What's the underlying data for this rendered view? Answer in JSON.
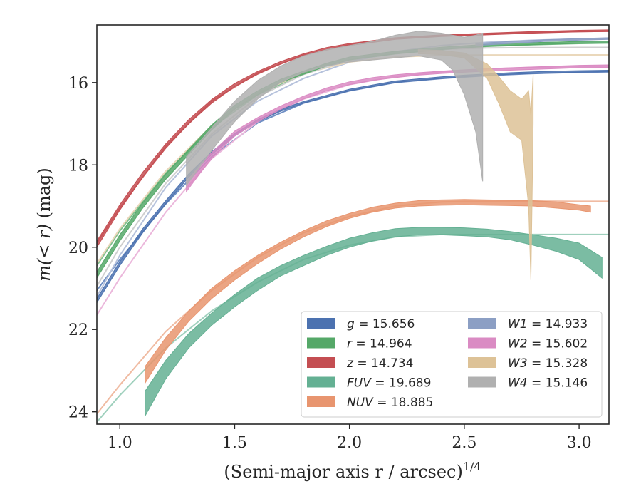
{
  "chart_data": {
    "type": "area",
    "title": "",
    "xlabel": "(Semi-major axis r / arcsec)",
    "xlabel_exponent": "1/4",
    "ylabel_prefix": "m(< r)",
    "ylabel_suffix": " (mag)",
    "xlim": [
      0.9,
      3.13
    ],
    "ylim": [
      24.3,
      14.6
    ],
    "y_inverted": true,
    "grid": false,
    "legend_position": "lower-right",
    "x_ticks": [
      {
        "value": 1.0,
        "label": "1.0"
      },
      {
        "value": 1.5,
        "label": "1.5"
      },
      {
        "value": 2.0,
        "label": "2.0"
      },
      {
        "value": 2.5,
        "label": "2.5"
      },
      {
        "value": 3.0,
        "label": "3.0"
      }
    ],
    "y_ticks": [
      {
        "value": 16,
        "label": "16"
      },
      {
        "value": 18,
        "label": "18"
      },
      {
        "value": 20,
        "label": "20"
      },
      {
        "value": 22,
        "label": "22"
      },
      {
        "value": 24,
        "label": "24"
      }
    ],
    "series": [
      {
        "name": "g = 15.656",
        "legend_var": "g",
        "legend_value": "15.656",
        "color": "#4c72b0",
        "model_color": "#6f8fc4",
        "x": [
          0.9,
          1.0,
          1.1,
          1.2,
          1.3,
          1.4,
          1.5,
          1.6,
          1.7,
          1.8,
          1.9,
          2.0,
          2.1,
          2.2,
          2.3,
          2.4,
          2.5,
          2.6,
          2.7,
          2.8,
          2.9,
          3.0,
          3.13
        ],
        "y_upper": [
          21.35,
          20.45,
          19.65,
          18.95,
          18.3,
          17.75,
          17.3,
          16.95,
          16.7,
          16.5,
          16.35,
          16.2,
          16.1,
          16.0,
          15.95,
          15.9,
          15.86,
          15.83,
          15.8,
          15.78,
          15.76,
          15.75,
          15.74
        ],
        "y_lower": [
          21.25,
          20.35,
          19.55,
          18.87,
          18.22,
          17.68,
          17.24,
          16.9,
          16.65,
          16.46,
          16.31,
          16.16,
          16.06,
          15.96,
          15.91,
          15.86,
          15.82,
          15.79,
          15.76,
          15.74,
          15.72,
          15.71,
          15.7
        ],
        "model_x": [
          0.9,
          1.0,
          1.2,
          1.4,
          1.6,
          1.8,
          2.0,
          2.2,
          2.4,
          2.6,
          2.8,
          3.0,
          3.13
        ],
        "model_y": [
          21.05,
          20.3,
          18.95,
          17.8,
          16.98,
          16.5,
          16.2,
          16.0,
          15.9,
          15.83,
          15.78,
          15.75,
          15.74
        ]
      },
      {
        "name": "r = 14.964",
        "legend_var": "r",
        "legend_value": "14.964",
        "color": "#55a868",
        "model_color": "#7fc08e",
        "x": [
          0.9,
          1.0,
          1.1,
          1.2,
          1.3,
          1.4,
          1.5,
          1.6,
          1.7,
          1.8,
          1.9,
          2.0,
          2.2,
          2.4,
          2.6,
          2.8,
          3.0,
          3.13
        ],
        "y_upper": [
          20.75,
          19.85,
          19.05,
          18.35,
          17.75,
          17.15,
          16.65,
          16.3,
          16.0,
          15.8,
          15.6,
          15.45,
          15.3,
          15.2,
          15.12,
          15.08,
          15.05,
          15.04
        ],
        "y_lower": [
          20.6,
          19.7,
          18.92,
          18.22,
          17.62,
          17.03,
          16.55,
          16.2,
          15.92,
          15.72,
          15.53,
          15.38,
          15.24,
          15.14,
          15.07,
          15.03,
          15.0,
          14.99
        ],
        "model_x": [
          0.9,
          1.0,
          1.2,
          1.4,
          1.6,
          1.8,
          2.0,
          2.2,
          2.4,
          2.6,
          2.8,
          3.0,
          3.13
        ],
        "model_y": [
          20.45,
          19.6,
          18.2,
          17.1,
          16.3,
          15.8,
          15.45,
          15.3,
          15.2,
          15.12,
          15.08,
          15.05,
          15.04
        ]
      },
      {
        "name": "z = 14.734",
        "legend_var": "z",
        "legend_value": "14.734",
        "color": "#c44e52",
        "model_color": "#d77a7d",
        "x": [
          0.9,
          1.0,
          1.1,
          1.2,
          1.3,
          1.4,
          1.5,
          1.6,
          1.7,
          1.8,
          1.9,
          2.0,
          2.2,
          2.4,
          2.6,
          2.8,
          3.0,
          3.13
        ],
        "y_upper": [
          20.0,
          19.1,
          18.3,
          17.6,
          17.0,
          16.5,
          16.1,
          15.8,
          15.55,
          15.35,
          15.2,
          15.1,
          14.95,
          14.88,
          14.84,
          14.8,
          14.77,
          14.76
        ],
        "y_lower": [
          19.85,
          18.97,
          18.18,
          17.49,
          16.9,
          16.41,
          16.02,
          15.73,
          15.49,
          15.3,
          15.15,
          15.05,
          14.91,
          14.84,
          14.8,
          14.76,
          14.73,
          14.72
        ],
        "model_x": [
          0.9,
          1.0,
          1.2,
          1.4,
          1.6,
          1.8,
          2.0,
          2.2,
          2.4,
          2.6,
          2.8,
          3.0,
          3.13
        ],
        "model_y": [
          19.9,
          19.05,
          17.55,
          16.45,
          15.77,
          15.33,
          15.08,
          14.93,
          14.86,
          14.82,
          14.78,
          14.76,
          14.75
        ]
      },
      {
        "name": "FUV = 19.689",
        "legend_var": "FUV",
        "legend_value": "19.689",
        "color": "#64b093",
        "model_color": "#9fd0bd",
        "x": [
          1.11,
          1.2,
          1.3,
          1.4,
          1.5,
          1.6,
          1.7,
          1.8,
          1.9,
          2.0,
          2.1,
          2.2,
          2.3,
          2.4,
          2.5,
          2.6,
          2.7,
          2.8,
          2.9,
          3.0,
          3.1
        ],
        "y_upper": [
          24.1,
          23.2,
          22.45,
          21.9,
          21.45,
          21.05,
          20.7,
          20.45,
          20.2,
          20.0,
          19.85,
          19.75,
          19.7,
          19.7,
          19.72,
          19.75,
          19.82,
          19.95,
          20.1,
          20.3,
          20.75
        ],
        "y_lower": [
          23.5,
          22.75,
          22.1,
          21.6,
          21.15,
          20.75,
          20.45,
          20.2,
          19.98,
          19.78,
          19.65,
          19.55,
          19.52,
          19.52,
          19.53,
          19.56,
          19.62,
          19.7,
          19.78,
          19.9,
          20.25
        ],
        "model_x": [
          0.9,
          1.0,
          1.2,
          1.4,
          1.6,
          1.8,
          2.0,
          2.2,
          2.4,
          2.6,
          2.8,
          3.0,
          3.13
        ],
        "model_y": [
          24.25,
          23.6,
          22.45,
          21.55,
          20.85,
          20.3,
          19.95,
          19.75,
          19.69,
          19.69,
          19.69,
          19.69,
          19.69
        ]
      },
      {
        "name": "NUV = 18.885",
        "legend_var": "NUV",
        "legend_value": "18.885",
        "color": "#e8956f",
        "model_color": "#f0bba2",
        "x": [
          1.11,
          1.2,
          1.3,
          1.4,
          1.5,
          1.6,
          1.7,
          1.8,
          1.9,
          2.0,
          2.1,
          2.2,
          2.3,
          2.4,
          2.5,
          2.6,
          2.7,
          2.8,
          2.9,
          3.0,
          3.05
        ],
        "y_upper": [
          23.3,
          22.5,
          21.8,
          21.25,
          20.8,
          20.4,
          20.05,
          19.75,
          19.5,
          19.3,
          19.15,
          19.05,
          19.0,
          18.98,
          18.97,
          18.98,
          18.99,
          19.0,
          19.05,
          19.1,
          19.15
        ],
        "y_lower": [
          22.9,
          22.2,
          21.55,
          21.0,
          20.57,
          20.2,
          19.88,
          19.6,
          19.36,
          19.18,
          19.03,
          18.93,
          18.87,
          18.85,
          18.84,
          18.85,
          18.86,
          18.87,
          18.9,
          18.97,
          19.0
        ],
        "model_x": [
          0.9,
          1.0,
          1.2,
          1.4,
          1.6,
          1.8,
          2.0,
          2.2,
          2.4,
          2.6,
          2.8,
          3.0,
          3.13
        ],
        "model_y": [
          24.05,
          23.35,
          22.05,
          21.05,
          20.25,
          19.65,
          19.25,
          19.0,
          18.9,
          18.88,
          18.88,
          18.885,
          18.885
        ]
      },
      {
        "name": "W1 = 14.933",
        "legend_var": "W1",
        "legend_value": "14.933",
        "color": "#8c9fc4",
        "model_color": "#b6c2dc",
        "x": [
          2.55,
          2.7,
          2.85,
          3.0,
          3.13
        ],
        "y_upper": [
          15.1,
          15.05,
          15.0,
          14.97,
          14.95
        ],
        "y_lower": [
          15.05,
          15.0,
          14.96,
          14.93,
          14.91
        ],
        "model_x": [
          0.9,
          1.0,
          1.2,
          1.4,
          1.6,
          1.8,
          2.0,
          2.2,
          2.4,
          2.6,
          2.8,
          3.0,
          3.13
        ],
        "model_y": [
          21.2,
          20.2,
          18.55,
          17.3,
          16.45,
          15.9,
          15.5,
          15.25,
          15.1,
          15.02,
          14.97,
          14.94,
          14.933
        ]
      },
      {
        "name": "W2 = 15.602",
        "legend_var": "W2",
        "legend_value": "15.602",
        "color": "#da8bc3",
        "model_color": "#ebb7db",
        "x": [
          1.29,
          1.35,
          1.4,
          1.5,
          1.6,
          1.7,
          1.8,
          1.9,
          2.0,
          2.1,
          2.2,
          2.3,
          2.4,
          2.5,
          2.6,
          2.7,
          2.8,
          2.9,
          3.0,
          3.13
        ],
        "y_upper": [
          18.65,
          18.2,
          17.85,
          17.3,
          16.95,
          16.65,
          16.4,
          16.2,
          16.05,
          15.95,
          15.88,
          15.82,
          15.78,
          15.75,
          15.72,
          15.7,
          15.68,
          15.66,
          15.64,
          15.63
        ],
        "y_lower": [
          18.4,
          18.0,
          17.7,
          17.18,
          16.85,
          16.57,
          16.33,
          16.13,
          15.98,
          15.88,
          15.81,
          15.76,
          15.72,
          15.69,
          15.66,
          15.64,
          15.62,
          15.6,
          15.58,
          15.57
        ],
        "model_x": [
          0.9,
          1.0,
          1.2,
          1.4,
          1.6,
          1.8,
          2.0,
          2.2,
          2.4,
          2.6,
          2.8,
          3.0,
          3.13
        ],
        "model_y": [
          21.65,
          20.75,
          19.15,
          17.85,
          16.95,
          16.4,
          16.05,
          15.85,
          15.74,
          15.67,
          15.63,
          15.61,
          15.602
        ]
      },
      {
        "name": "W3 = 15.328",
        "legend_var": "W3",
        "legend_value": "15.328",
        "color": "#ddc297",
        "model_color": "#ead8bb",
        "x": [
          2.3,
          2.4,
          2.5,
          2.6,
          2.65,
          2.7,
          2.75,
          2.78,
          2.79,
          2.8
        ],
        "y_upper": [
          15.3,
          15.32,
          15.4,
          15.9,
          16.5,
          17.2,
          17.4,
          19.0,
          20.8,
          17.0
        ],
        "y_lower": [
          15.2,
          15.22,
          15.28,
          15.55,
          15.85,
          16.2,
          16.4,
          16.2,
          16.8,
          15.8
        ],
        "model_x": [
          0.9,
          1.0,
          1.2,
          1.4,
          1.6,
          1.8,
          2.0,
          2.2,
          2.4,
          2.6,
          2.8,
          3.0,
          3.13
        ],
        "model_y": [
          20.4,
          19.55,
          18.15,
          17.05,
          16.25,
          15.78,
          15.5,
          15.38,
          15.34,
          15.33,
          15.33,
          15.328,
          15.328
        ]
      },
      {
        "name": "W4 = 15.146",
        "legend_var": "W4",
        "legend_value": "15.146",
        "color": "#b0b0b0",
        "model_color": "#cfcfcf",
        "x": [
          1.29,
          1.4,
          1.5,
          1.6,
          1.7,
          1.8,
          1.9,
          2.0,
          2.1,
          2.2,
          2.3,
          2.4,
          2.45,
          2.5,
          2.55,
          2.58
        ],
        "y_upper": [
          18.5,
          17.65,
          16.95,
          16.4,
          16.0,
          15.75,
          15.6,
          15.5,
          15.45,
          15.4,
          15.35,
          15.45,
          15.7,
          16.3,
          17.2,
          18.4
        ],
        "y_lower": [
          17.8,
          17.1,
          16.45,
          15.95,
          15.6,
          15.35,
          15.2,
          15.1,
          15.0,
          14.85,
          14.75,
          14.8,
          14.85,
          14.9,
          14.85,
          14.8
        ],
        "model_x": [
          0.9,
          1.0,
          1.2,
          1.4,
          1.6,
          1.8,
          2.0,
          2.2,
          2.4,
          2.6,
          2.8,
          3.0,
          3.13
        ],
        "model_y": [
          20.95,
          20.0,
          18.45,
          17.25,
          16.35,
          15.8,
          15.45,
          15.27,
          15.19,
          15.16,
          15.15,
          15.146,
          15.146
        ]
      }
    ],
    "legend_columns": [
      [
        "g = 15.656",
        "r = 14.964",
        "z = 14.734",
        "FUV = 19.689",
        "NUV = 18.885"
      ],
      [
        "W1 = 14.933",
        "W2 = 15.602",
        "W3 = 15.328",
        "W4 = 15.146"
      ]
    ]
  }
}
